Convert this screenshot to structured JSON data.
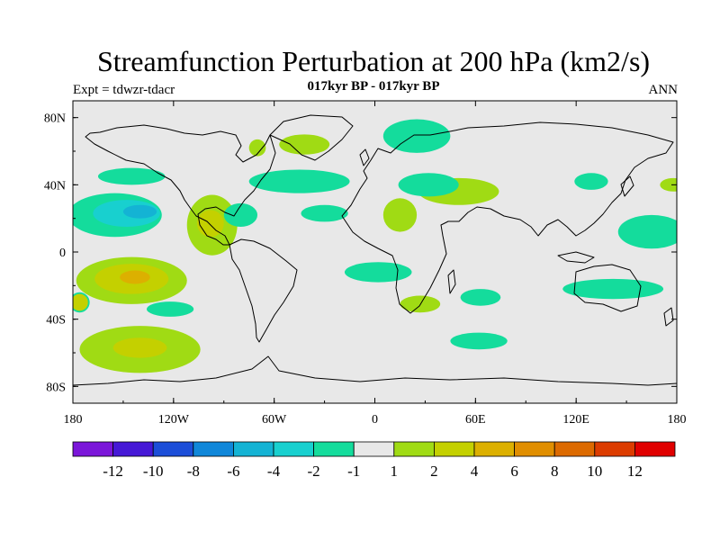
{
  "title": "Streamfunction Perturbation at 200 hPa (km2/s)",
  "subtitle": "017kyr BP - 017kyr BP",
  "left_label": "Expt = tdwzr-tdacr",
  "right_label": "ANN",
  "colors": {
    "background": "#ffffff",
    "land_neutral": "#e8e8e8",
    "coast": "#000000"
  },
  "map": {
    "lon_range": [
      -180,
      180
    ],
    "lat_range": [
      -90,
      90
    ],
    "x_ticks": [
      {
        "lon": -180,
        "label": "180"
      },
      {
        "lon": -120,
        "label": "120W"
      },
      {
        "lon": -60,
        "label": "60W"
      },
      {
        "lon": 0,
        "label": "0"
      },
      {
        "lon": 60,
        "label": "60E"
      },
      {
        "lon": 120,
        "label": "120E"
      },
      {
        "lon": 180,
        "label": "180"
      }
    ],
    "y_ticks": [
      {
        "lat": 80,
        "label": "80N"
      },
      {
        "lat": 40,
        "label": "40N"
      },
      {
        "lat": 0,
        "label": "0"
      },
      {
        "lat": -40,
        "label": "40S"
      },
      {
        "lat": -80,
        "label": "80S"
      }
    ],
    "anomalies": [
      {
        "lon": -155,
        "lat": 22,
        "rlon": 28,
        "rlat": 13,
        "level": -1
      },
      {
        "lon": -148,
        "lat": 23,
        "rlon": 20,
        "rlat": 8,
        "level": -2
      },
      {
        "lon": -140,
        "lat": 24,
        "rlon": 10,
        "rlat": 4,
        "level": -3
      },
      {
        "lon": -145,
        "lat": 45,
        "rlon": 20,
        "rlat": 5,
        "level": -1
      },
      {
        "lon": -145,
        "lat": -17,
        "rlon": 33,
        "rlat": 14,
        "level": 1
      },
      {
        "lon": -145,
        "lat": -16,
        "rlon": 22,
        "rlat": 9,
        "level": 2
      },
      {
        "lon": -143,
        "lat": -15,
        "rlon": 9,
        "rlat": 4,
        "level": 3
      },
      {
        "lon": -140,
        "lat": -58,
        "rlon": 36,
        "rlat": 14,
        "level": 1
      },
      {
        "lon": -140,
        "lat": -57,
        "rlon": 16,
        "rlat": 6,
        "level": 2
      },
      {
        "lon": -122,
        "lat": -34,
        "rlon": 14,
        "rlat": 4.5,
        "level": -1
      },
      {
        "lon": -176,
        "lat": -30,
        "rlon": 6,
        "rlat": 6,
        "level": -1
      },
      {
        "lon": -176,
        "lat": -30,
        "rlon": 5,
        "rlat": 5,
        "level": 2
      },
      {
        "lon": -97,
        "lat": 16,
        "rlon": 15,
        "rlat": 18,
        "level": 1
      },
      {
        "lon": -98,
        "lat": 17,
        "rlon": 8,
        "rlat": 8,
        "level": 2
      },
      {
        "lon": -80,
        "lat": 22,
        "rlon": 10,
        "rlat": 7,
        "level": -1
      },
      {
        "lon": -42,
        "lat": 64,
        "rlon": 15,
        "rlat": 6,
        "level": 1
      },
      {
        "lon": -70,
        "lat": 62,
        "rlon": 5,
        "rlat": 5,
        "level": 1
      },
      {
        "lon": -45,
        "lat": 42,
        "rlon": 30,
        "rlat": 7,
        "level": -1
      },
      {
        "lon": -30,
        "lat": 23,
        "rlon": 14,
        "rlat": 5,
        "level": -1
      },
      {
        "lon": 15,
        "lat": 22,
        "rlon": 10,
        "rlat": 10,
        "level": 1
      },
      {
        "lon": 50,
        "lat": 36,
        "rlon": 24,
        "rlat": 8,
        "level": 1
      },
      {
        "lon": 32,
        "lat": 40,
        "rlon": 18,
        "rlat": 7,
        "level": -1
      },
      {
        "lon": 25,
        "lat": 69,
        "rlon": 20,
        "rlat": 10,
        "level": -1
      },
      {
        "lon": 2,
        "lat": -12,
        "rlon": 20,
        "rlat": 6,
        "level": -1
      },
      {
        "lon": 27,
        "lat": -31,
        "rlon": 12,
        "rlat": 5,
        "level": 1
      },
      {
        "lon": 63,
        "lat": -27,
        "rlon": 12,
        "rlat": 5,
        "level": -1
      },
      {
        "lon": 62,
        "lat": -53,
        "rlon": 17,
        "rlat": 5,
        "level": -1
      },
      {
        "lon": 129,
        "lat": 42,
        "rlon": 10,
        "rlat": 5,
        "level": -1
      },
      {
        "lon": 178,
        "lat": 40,
        "rlon": 8,
        "rlat": 4,
        "level": 1
      },
      {
        "lon": 165,
        "lat": 12,
        "rlon": 20,
        "rlat": 10,
        "level": -1
      },
      {
        "lon": 142,
        "lat": -22,
        "rlon": 30,
        "rlat": 6,
        "level": -1
      }
    ]
  },
  "colorbar": {
    "colors": [
      "#7b16d9",
      "#4618d6",
      "#1c4ed8",
      "#1087d9",
      "#14b3d4",
      "#18d0cf",
      "#14dc9c",
      "#e8e8e8",
      "#a0db14",
      "#c4d000",
      "#dcb000",
      "#e08e00",
      "#dc6a00",
      "#dc3c00",
      "#e00000"
    ],
    "labels": [
      "-12",
      "-10",
      "-8",
      "-6",
      "-4",
      "-2",
      "-1",
      "1",
      "2",
      "4",
      "6",
      "8",
      "10",
      "12"
    ]
  }
}
